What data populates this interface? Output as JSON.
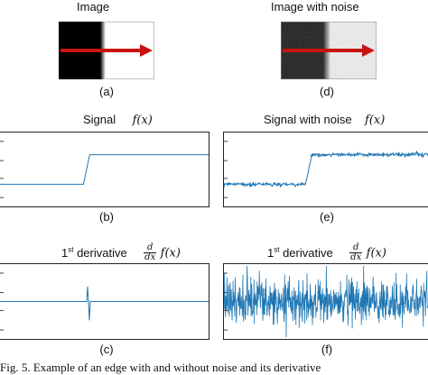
{
  "panels": {
    "a": {
      "title": "Image",
      "label": "(a)"
    },
    "d": {
      "title": "Image with noise",
      "label": "(d)"
    },
    "b": {
      "title": "Signal",
      "formula": "f(x)",
      "label": "(b)"
    },
    "e": {
      "title": "Signal with noise",
      "formula": "f(x)",
      "label": "(e)"
    },
    "c": {
      "title_main": "1",
      "title_sup": "st",
      "title_rest": " derivative",
      "frac_num": "d",
      "frac_den": "dx",
      "formula": "f(x)",
      "label": "(c)"
    },
    "f": {
      "title_main": "1",
      "title_sup": "st",
      "title_rest": " derivative",
      "frac_num": "d",
      "frac_den": "dx",
      "formula": "f(x)",
      "label": "(f)"
    }
  },
  "figure_caption": "Fig. 5. Example of an edge with and without noise and its derivative",
  "colors": {
    "signal": "#1f77b4",
    "arrow": "#cc1111"
  },
  "chart_data": [
    {
      "type": "line",
      "panel": "b",
      "description_values": {
        "step_at": 0.42,
        "low": 0.3,
        "high": 0.7
      },
      "x": [
        0,
        0.4,
        0.43,
        1
      ],
      "y": [
        0.3,
        0.3,
        0.7,
        0.7
      ]
    },
    {
      "type": "line",
      "panel": "e",
      "noisy": true,
      "x": [
        0,
        0.4,
        0.43,
        1
      ],
      "y": [
        0.3,
        0.3,
        0.7,
        0.7
      ]
    },
    {
      "type": "line",
      "panel": "c",
      "baseline": 0.5,
      "spike_at": 0.42,
      "spike_min": 0.0,
      "spike_max": 1.0
    },
    {
      "type": "line",
      "panel": "f",
      "noisy": true,
      "baseline": 0.5
    }
  ]
}
